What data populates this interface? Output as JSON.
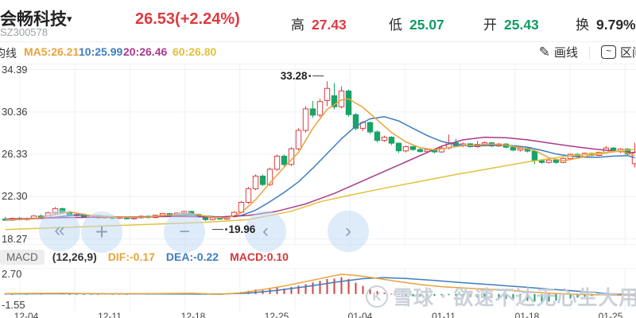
{
  "header": {
    "stock_name": "会畅科技",
    "caret": "▾",
    "stock_code": "SZ300578",
    "price": "26.53(+2.24%)",
    "stats": [
      {
        "label": "高",
        "value": "27.43",
        "color": "#e0393e"
      },
      {
        "label": "低",
        "value": "25.07",
        "color": "#119b62"
      },
      {
        "label": "开",
        "value": "25.43",
        "color": "#119b62"
      },
      {
        "label": "换",
        "value": "9.79%",
        "color": "#2b2b2b"
      }
    ]
  },
  "legend": {
    "title": "均线",
    "items": [
      {
        "label": "MA5:26.21",
        "color": "#e8a33c"
      },
      {
        "label": "10:25.99",
        "color": "#3e7dbf"
      },
      {
        "label": "20:26.46",
        "color": "#a93a8b"
      },
      {
        "label": "60:26.80",
        "color": "#e2c13c"
      }
    ],
    "tools": [
      {
        "label": "画线",
        "icon": "pencil-icon",
        "glyph": "✎"
      },
      {
        "label": "区间",
        "icon": "range-icon",
        "glyph": "~"
      }
    ]
  },
  "macd_legend": {
    "name": "MACD",
    "params": "(12,26,9)",
    "items": [
      {
        "label": "DIF:-0.17",
        "color": "#e8a33c"
      },
      {
        "label": "DEA:-0.22",
        "color": "#3e7dbf"
      },
      {
        "label": "MACD:0.10",
        "color": "#d0393b"
      }
    ]
  },
  "chart_controls": [
    {
      "name": "jump-start",
      "glyph": "«"
    },
    {
      "name": "zoom-in-crosshair",
      "glyph": "+"
    },
    {
      "name": "zoom-out",
      "glyph": "−"
    },
    {
      "name": "pan-left",
      "glyph": "‹"
    },
    {
      "name": "pan-right",
      "glyph": "›"
    }
  ],
  "watermark": {
    "brand": "雪球",
    "separator": "·",
    "user": "欲速不达无心生大用",
    "logo_glyph": "K"
  },
  "colors": {
    "candle_up": "#e23b40",
    "candle_down": "#18a368",
    "grid": "#eef0f3",
    "hist_up": "#cf4444",
    "hist_down": "#1aa06b"
  },
  "chart_data": {
    "type": "candlestick+macd",
    "title": "会畅科技 SZ300578 日K",
    "y_ticks": [
      34.39,
      30.36,
      26.33,
      22.3,
      18.27
    ],
    "macd_ticks": [
      2.7,
      -1.55
    ],
    "x_labels": [
      "12-04",
      "12-11",
      "12-18",
      "12-25",
      "01-04",
      "01-11",
      "01-18",
      "01-25"
    ],
    "annotations": {
      "max": {
        "index": 45,
        "value": "33.28"
      },
      "min": {
        "index": 28,
        "value": "19.96"
      }
    },
    "candles": [
      [
        20.15,
        20.35,
        20.0,
        20.05
      ],
      [
        20.05,
        20.3,
        20.0,
        20.22
      ],
      [
        20.22,
        20.35,
        20.05,
        20.1
      ],
      [
        20.1,
        20.28,
        20.02,
        20.2
      ],
      [
        20.2,
        20.55,
        20.12,
        20.45
      ],
      [
        20.45,
        20.6,
        20.2,
        20.28
      ],
      [
        20.28,
        20.85,
        20.22,
        20.75
      ],
      [
        20.75,
        21.3,
        20.65,
        21.15
      ],
      [
        21.15,
        21.25,
        20.7,
        20.78
      ],
      [
        20.78,
        20.9,
        20.4,
        20.48
      ],
      [
        20.48,
        20.7,
        20.4,
        20.6
      ],
      [
        20.6,
        20.68,
        20.28,
        20.35
      ],
      [
        20.35,
        20.55,
        20.28,
        20.48
      ],
      [
        20.48,
        20.55,
        20.2,
        20.28
      ],
      [
        20.28,
        20.45,
        20.2,
        20.38
      ],
      [
        20.38,
        20.45,
        20.15,
        20.22
      ],
      [
        20.22,
        20.4,
        20.15,
        20.32
      ],
      [
        20.32,
        20.4,
        20.1,
        20.18
      ],
      [
        20.18,
        20.35,
        20.1,
        20.28
      ],
      [
        20.28,
        20.5,
        20.2,
        20.42
      ],
      [
        20.42,
        20.5,
        20.22,
        20.3
      ],
      [
        20.3,
        20.58,
        20.25,
        20.52
      ],
      [
        20.52,
        20.75,
        20.45,
        20.68
      ],
      [
        20.68,
        20.75,
        20.42,
        20.5
      ],
      [
        20.5,
        20.8,
        20.45,
        20.72
      ],
      [
        20.72,
        20.95,
        20.6,
        20.88
      ],
      [
        20.88,
        20.95,
        20.52,
        20.6
      ],
      [
        20.6,
        20.68,
        20.3,
        20.38
      ],
      [
        20.38,
        20.45,
        19.96,
        20.1
      ],
      [
        20.1,
        20.35,
        20.05,
        20.28
      ],
      [
        20.28,
        20.35,
        20.08,
        20.15
      ],
      [
        20.15,
        20.45,
        20.08,
        20.38
      ],
      [
        20.38,
        20.9,
        20.3,
        20.8
      ],
      [
        20.8,
        21.9,
        20.7,
        21.75
      ],
      [
        21.75,
        23.2,
        21.6,
        23.05
      ],
      [
        23.05,
        24.4,
        22.9,
        24.25
      ],
      [
        24.25,
        24.4,
        23.3,
        23.45
      ],
      [
        23.45,
        25.05,
        23.3,
        24.9
      ],
      [
        24.9,
        26.3,
        24.75,
        26.15
      ],
      [
        26.15,
        26.3,
        25.2,
        25.35
      ],
      [
        25.35,
        27.0,
        25.2,
        26.85
      ],
      [
        26.85,
        28.8,
        26.7,
        28.6
      ],
      [
        28.6,
        30.9,
        28.4,
        30.65
      ],
      [
        30.65,
        31.4,
        29.8,
        30.05
      ],
      [
        30.05,
        31.6,
        29.85,
        31.35
      ],
      [
        31.45,
        33.28,
        30.9,
        32.6
      ],
      [
        31.9,
        33.1,
        30.6,
        30.85
      ],
      [
        30.85,
        32.8,
        30.7,
        32.35
      ],
      [
        32.35,
        32.5,
        29.9,
        30.1
      ],
      [
        30.1,
        30.25,
        28.6,
        28.8
      ],
      [
        28.8,
        29.5,
        28.55,
        29.35
      ],
      [
        29.35,
        29.45,
        28.25,
        28.45
      ],
      [
        28.45,
        28.6,
        27.45,
        27.65
      ],
      [
        27.65,
        28.1,
        27.5,
        27.95
      ],
      [
        27.95,
        28.05,
        27.2,
        27.38
      ],
      [
        27.38,
        27.45,
        26.45,
        26.65
      ],
      [
        26.65,
        27.15,
        26.5,
        27.05
      ],
      [
        27.05,
        27.15,
        26.65,
        26.78
      ],
      [
        26.78,
        27.0,
        26.5,
        26.58
      ],
      [
        26.58,
        26.9,
        26.48,
        26.78
      ],
      [
        26.78,
        26.85,
        26.42,
        26.55
      ],
      [
        26.55,
        27.05,
        26.45,
        26.92
      ],
      [
        26.92,
        28.2,
        26.8,
        27.42
      ],
      [
        27.42,
        27.8,
        27.0,
        27.12
      ],
      [
        27.12,
        27.45,
        27.0,
        27.32
      ],
      [
        27.32,
        27.4,
        26.95,
        27.05
      ],
      [
        27.05,
        27.6,
        26.95,
        27.28
      ],
      [
        27.28,
        27.55,
        27.1,
        27.42
      ],
      [
        27.42,
        27.5,
        27.0,
        27.12
      ],
      [
        27.12,
        27.4,
        27.02,
        27.3
      ],
      [
        27.3,
        27.38,
        26.9,
        27.0
      ],
      [
        27.0,
        27.08,
        26.6,
        26.72
      ],
      [
        26.72,
        26.95,
        26.58,
        26.88
      ],
      [
        26.88,
        26.95,
        26.5,
        26.62
      ],
      [
        26.62,
        26.7,
        25.38,
        25.72
      ],
      [
        25.72,
        25.85,
        25.4,
        25.55
      ],
      [
        25.55,
        25.85,
        25.45,
        25.78
      ],
      [
        25.78,
        25.85,
        25.42,
        25.55
      ],
      [
        25.55,
        26.0,
        25.48,
        25.92
      ],
      [
        25.92,
        26.4,
        25.8,
        26.32
      ],
      [
        26.32,
        26.42,
        26.0,
        26.12
      ],
      [
        26.12,
        26.48,
        26.05,
        26.42
      ],
      [
        26.42,
        26.5,
        26.12,
        26.22
      ],
      [
        26.22,
        26.58,
        26.15,
        26.52
      ],
      [
        26.52,
        27.1,
        26.45,
        26.92
      ],
      [
        26.92,
        27.0,
        26.48,
        26.58
      ],
      [
        26.58,
        26.9,
        26.45,
        26.82
      ],
      [
        26.82,
        26.9,
        26.25,
        26.35
      ],
      [
        25.43,
        27.43,
        25.07,
        26.53
      ]
    ],
    "ma": {
      "ma5": {
        "color": "#e8a33c",
        "points": [
          [
            0,
            20.08
          ],
          [
            4,
            20.18
          ],
          [
            7,
            20.6
          ],
          [
            9,
            20.85
          ],
          [
            12,
            20.48
          ],
          [
            16,
            20.32
          ],
          [
            20,
            20.35
          ],
          [
            23,
            20.55
          ],
          [
            26,
            20.68
          ],
          [
            29,
            20.32
          ],
          [
            31,
            20.25
          ],
          [
            33,
            20.75
          ],
          [
            35,
            22.0
          ],
          [
            37,
            23.6
          ],
          [
            39,
            25.1
          ],
          [
            41,
            26.5
          ],
          [
            43,
            28.8
          ],
          [
            45,
            30.6
          ],
          [
            47,
            31.5
          ],
          [
            48,
            31.6
          ],
          [
            50,
            30.8
          ],
          [
            52,
            29.6
          ],
          [
            54,
            28.4
          ],
          [
            56,
            27.5
          ],
          [
            58,
            26.95
          ],
          [
            60,
            26.75
          ],
          [
            62,
            26.95
          ],
          [
            64,
            27.15
          ],
          [
            66,
            27.2
          ],
          [
            68,
            27.3
          ],
          [
            70,
            27.2
          ],
          [
            72,
            26.95
          ],
          [
            74,
            26.7
          ],
          [
            76,
            26.0
          ],
          [
            78,
            25.7
          ],
          [
            80,
            25.95
          ],
          [
            82,
            26.25
          ],
          [
            84,
            26.45
          ],
          [
            86,
            26.65
          ],
          [
            88,
            26.21
          ]
        ]
      },
      "ma10": {
        "color": "#3e7dbf",
        "points": [
          [
            0,
            20.05
          ],
          [
            6,
            20.25
          ],
          [
            10,
            20.55
          ],
          [
            14,
            20.42
          ],
          [
            18,
            20.3
          ],
          [
            22,
            20.42
          ],
          [
            26,
            20.55
          ],
          [
            30,
            20.35
          ],
          [
            33,
            20.5
          ],
          [
            35,
            21.0
          ],
          [
            37,
            21.8
          ],
          [
            39,
            22.7
          ],
          [
            41,
            23.7
          ],
          [
            43,
            25.0
          ],
          [
            45,
            26.4
          ],
          [
            47,
            27.8
          ],
          [
            49,
            29.0
          ],
          [
            51,
            29.7
          ],
          [
            53,
            29.9
          ],
          [
            55,
            29.5
          ],
          [
            57,
            28.8
          ],
          [
            59,
            28.1
          ],
          [
            61,
            27.55
          ],
          [
            63,
            27.25
          ],
          [
            65,
            27.1
          ],
          [
            67,
            27.15
          ],
          [
            69,
            27.2
          ],
          [
            71,
            27.15
          ],
          [
            73,
            27.0
          ],
          [
            75,
            26.7
          ],
          [
            77,
            26.35
          ],
          [
            79,
            26.15
          ],
          [
            81,
            26.05
          ],
          [
            83,
            26.05
          ],
          [
            85,
            26.15
          ],
          [
            87,
            26.2
          ],
          [
            88,
            25.99
          ]
        ]
      },
      "ma20": {
        "color": "#a93a8b",
        "points": [
          [
            0,
            20.15
          ],
          [
            8,
            20.3
          ],
          [
            16,
            20.35
          ],
          [
            24,
            20.4
          ],
          [
            30,
            20.35
          ],
          [
            34,
            20.5
          ],
          [
            38,
            20.9
          ],
          [
            42,
            21.6
          ],
          [
            46,
            22.6
          ],
          [
            50,
            23.8
          ],
          [
            54,
            25.0
          ],
          [
            58,
            26.2
          ],
          [
            61,
            27.1
          ],
          [
            64,
            27.7
          ],
          [
            67,
            27.95
          ],
          [
            70,
            27.9
          ],
          [
            73,
            27.7
          ],
          [
            76,
            27.4
          ],
          [
            79,
            27.1
          ],
          [
            82,
            26.85
          ],
          [
            85,
            26.65
          ],
          [
            88,
            26.46
          ]
        ]
      },
      "ma60": {
        "color": "#e2c13c",
        "points": [
          [
            0,
            19.15
          ],
          [
            10,
            19.4
          ],
          [
            20,
            19.65
          ],
          [
            28,
            19.85
          ],
          [
            34,
            20.1
          ],
          [
            40,
            20.9
          ],
          [
            44,
            21.8
          ],
          [
            48,
            22.4
          ],
          [
            53,
            23.1
          ],
          [
            58,
            23.75
          ],
          [
            63,
            24.4
          ],
          [
            68,
            25.0
          ],
          [
            73,
            25.6
          ],
          [
            78,
            26.1
          ],
          [
            83,
            26.45
          ],
          [
            88,
            26.8
          ]
        ]
      }
    },
    "macd": {
      "dif": [
        [
          0,
          0.05
        ],
        [
          8,
          0.1
        ],
        [
          14,
          0.02
        ],
        [
          20,
          0.04
        ],
        [
          26,
          0.1
        ],
        [
          30,
          -0.04
        ],
        [
          33,
          0.15
        ],
        [
          36,
          0.6
        ],
        [
          39,
          1.1
        ],
        [
          42,
          1.7
        ],
        [
          45,
          2.3
        ],
        [
          47,
          2.7
        ],
        [
          49,
          2.55
        ],
        [
          52,
          2.15
        ],
        [
          55,
          1.7
        ],
        [
          58,
          1.3
        ],
        [
          61,
          1.0
        ],
        [
          64,
          0.82
        ],
        [
          67,
          0.68
        ],
        [
          70,
          0.52
        ],
        [
          73,
          0.32
        ],
        [
          76,
          0.12
        ],
        [
          79,
          -0.02
        ],
        [
          82,
          -0.1
        ],
        [
          85,
          -0.15
        ],
        [
          88,
          -0.17
        ]
      ],
      "dea": [
        [
          0,
          0.02
        ],
        [
          10,
          0.04
        ],
        [
          20,
          0.02
        ],
        [
          30,
          -0.01
        ],
        [
          34,
          0.12
        ],
        [
          38,
          0.5
        ],
        [
          42,
          1.0
        ],
        [
          46,
          1.6
        ],
        [
          50,
          2.1
        ],
        [
          53,
          2.25
        ],
        [
          56,
          2.12
        ],
        [
          60,
          1.85
        ],
        [
          64,
          1.55
        ],
        [
          68,
          1.28
        ],
        [
          72,
          0.98
        ],
        [
          76,
          0.68
        ],
        [
          80,
          0.38
        ],
        [
          84,
          0.08
        ],
        [
          88,
          -0.22
        ]
      ],
      "hist": [
        0.03,
        -0.02,
        0.04,
        -0.03,
        0.05,
        0.02,
        0.08,
        0.1,
        0.04,
        -0.05,
        -0.03,
        -0.06,
        -0.02,
        -0.05,
        0.03,
        -0.04,
        0.02,
        -0.05,
        0.03,
        0.06,
        0.02,
        0.05,
        0.08,
        0.03,
        0.06,
        0.09,
        0.04,
        -0.04,
        -0.08,
        -0.03,
        -0.05,
        0.04,
        0.1,
        0.28,
        0.45,
        0.62,
        0.5,
        0.68,
        0.88,
        0.75,
        0.95,
        1.15,
        1.35,
        1.58,
        1.8,
        2.05,
        2.1,
        2.3,
        2.05,
        1.55,
        1.1,
        0.7,
        0.38,
        0.18,
        0.05,
        -0.12,
        -0.22,
        -0.32,
        -0.38,
        -0.32,
        -0.26,
        -0.2,
        -0.15,
        -0.22,
        -0.32,
        -0.42,
        -0.48,
        -0.52,
        -0.58,
        -0.62,
        -0.68,
        -0.75,
        -0.85,
        -0.95,
        -1.05,
        -1.1,
        -1.02,
        -0.92,
        -0.78,
        -0.62,
        -0.5,
        -0.38,
        -0.28,
        -0.18,
        -0.08,
        0.02,
        0.05,
        0.08,
        0.1
      ]
    }
  }
}
